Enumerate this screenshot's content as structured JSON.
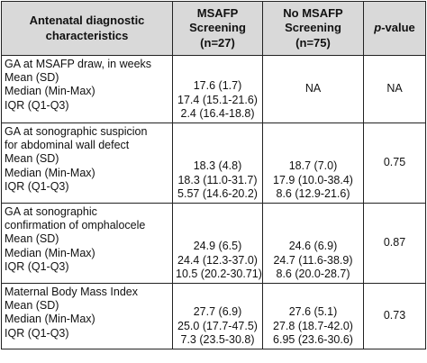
{
  "header": {
    "col1": "Antenatal diagnostic characteristics",
    "col2_line1": "MSAFP",
    "col2_line2": "Screening",
    "col2_line3": "(n=27)",
    "col3_line1": "No MSAFP",
    "col3_line2": "Screening",
    "col3_line3": "(n=75)",
    "col4_italic": "p",
    "col4_rest": "-value"
  },
  "sections": [
    {
      "title_lines": [
        "GA at MSAFP draw, in weeks"
      ],
      "rows": [
        "Mean (SD)",
        "Median (Min-Max)",
        "IQR (Q1-Q3)"
      ],
      "msafp": [
        "17.6 (1.7)",
        "17.4 (15.1-21.6)",
        "2.4 (16.4-18.8)"
      ],
      "no_msafp_lines": [
        "NA"
      ],
      "p_value": "NA"
    },
    {
      "title_lines": [
        "GA at sonographic suspicion",
        "for abdominal wall defect"
      ],
      "rows": [
        "Mean (SD)",
        "Median (Min-Max)",
        "IQR (Q1-Q3)"
      ],
      "msafp": [
        "18.3 (4.8)",
        "18.3 (11.0-31.7)",
        "5.57 (14.6-20.2)"
      ],
      "no_msafp_lines": [
        "18.7 (7.0)",
        "17.9 (10.0-38.4)",
        "8.6 (12.9-21.6)"
      ],
      "p_value": "0.75"
    },
    {
      "title_lines": [
        "GA at sonographic",
        "confirmation of omphalocele"
      ],
      "rows": [
        "Mean (SD)",
        "Median (Min-Max)",
        "IQR (Q1-Q3)"
      ],
      "msafp": [
        "24.9 (6.5)",
        "24.4 (12.3-37.0)",
        "10.5 (20.2-30.71)"
      ],
      "no_msafp_lines": [
        "24.6 (6.9)",
        "24.7 (11.6-38.9)",
        "8.6 (20.0-28.7)"
      ],
      "p_value": "0.87"
    },
    {
      "title_lines": [
        "Maternal Body Mass Index"
      ],
      "rows": [
        "Mean (SD)",
        "Median (Min-Max)",
        "IQR (Q1-Q3)"
      ],
      "msafp": [
        "27.7 (6.9)",
        "25.0 (17.7-47.5)",
        "7.3 (23.5-30.8)"
      ],
      "no_msafp_lines": [
        "27.6 (5.1)",
        "27.8 (18.7-42.0)",
        "6.95 (23.6-30.6)"
      ],
      "p_value": "0.73"
    }
  ]
}
